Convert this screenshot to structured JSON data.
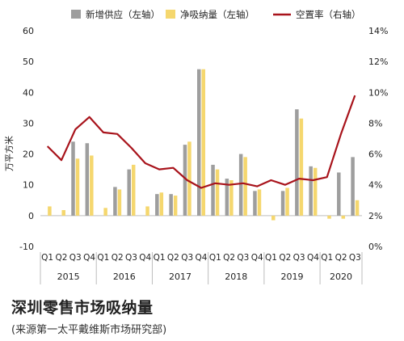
{
  "chart_data": {
    "type": "bar",
    "title": "深圳零售市场吸纳量",
    "subtitle": "(来源第一太平戴维斯市场研究部)",
    "ylabel": "万平方米",
    "ylim": [
      -10,
      60
    ],
    "y_ticks": [
      "-10",
      "0",
      "10",
      "20",
      "30",
      "40",
      "50",
      "60"
    ],
    "y2lim": [
      0,
      14
    ],
    "y2_ticks": [
      "0%",
      "2%",
      "4%",
      "6%",
      "8%",
      "10%",
      "12%",
      "14%"
    ],
    "categories": [
      "Q1",
      "Q2",
      "Q3",
      "Q4",
      "Q1",
      "Q2",
      "Q3",
      "Q4",
      "Q1",
      "Q2",
      "Q3",
      "Q4",
      "Q1",
      "Q2",
      "Q3",
      "Q4",
      "Q1",
      "Q2",
      "Q3",
      "Q4",
      "Q1",
      "Q2",
      "Q3"
    ],
    "years": [
      {
        "label": "2015",
        "count": 4
      },
      {
        "label": "2016",
        "count": 4
      },
      {
        "label": "2017",
        "count": 4
      },
      {
        "label": "2018",
        "count": 4
      },
      {
        "label": "2019",
        "count": 4
      },
      {
        "label": "2020",
        "count": 3
      }
    ],
    "series": [
      {
        "name": "新增供应（左轴）",
        "type": "bar",
        "axis": "left",
        "color": "#9e9e9e",
        "values": [
          0,
          0,
          24,
          23.5,
          0,
          9.3,
          15,
          0,
          7,
          7,
          23,
          47.5,
          16.5,
          12,
          20,
          8,
          0,
          8,
          34.5,
          16,
          0,
          14,
          19
        ]
      },
      {
        "name": "净吸纳量（左轴）",
        "type": "bar",
        "axis": "left",
        "color": "#f5d76e",
        "values": [
          3,
          1.8,
          18.5,
          19.5,
          2.5,
          8.5,
          16.5,
          3,
          7.5,
          6.5,
          24,
          47.5,
          15,
          11.5,
          19,
          8.5,
          -1.5,
          9,
          31.5,
          15.5,
          -1,
          -1,
          5
        ]
      },
      {
        "name": "空置率（右轴）",
        "type": "line",
        "axis": "right",
        "color": "#a8131b",
        "values": [
          6.5,
          5.6,
          7.6,
          8.4,
          7.4,
          7.3,
          6.4,
          5.4,
          5.0,
          5.1,
          4.3,
          3.8,
          4.1,
          4.0,
          4.1,
          3.9,
          4.3,
          4.0,
          4.4,
          4.3,
          4.5,
          7.3,
          9.8
        ]
      }
    ],
    "legend_position": "top",
    "grid": false
  }
}
